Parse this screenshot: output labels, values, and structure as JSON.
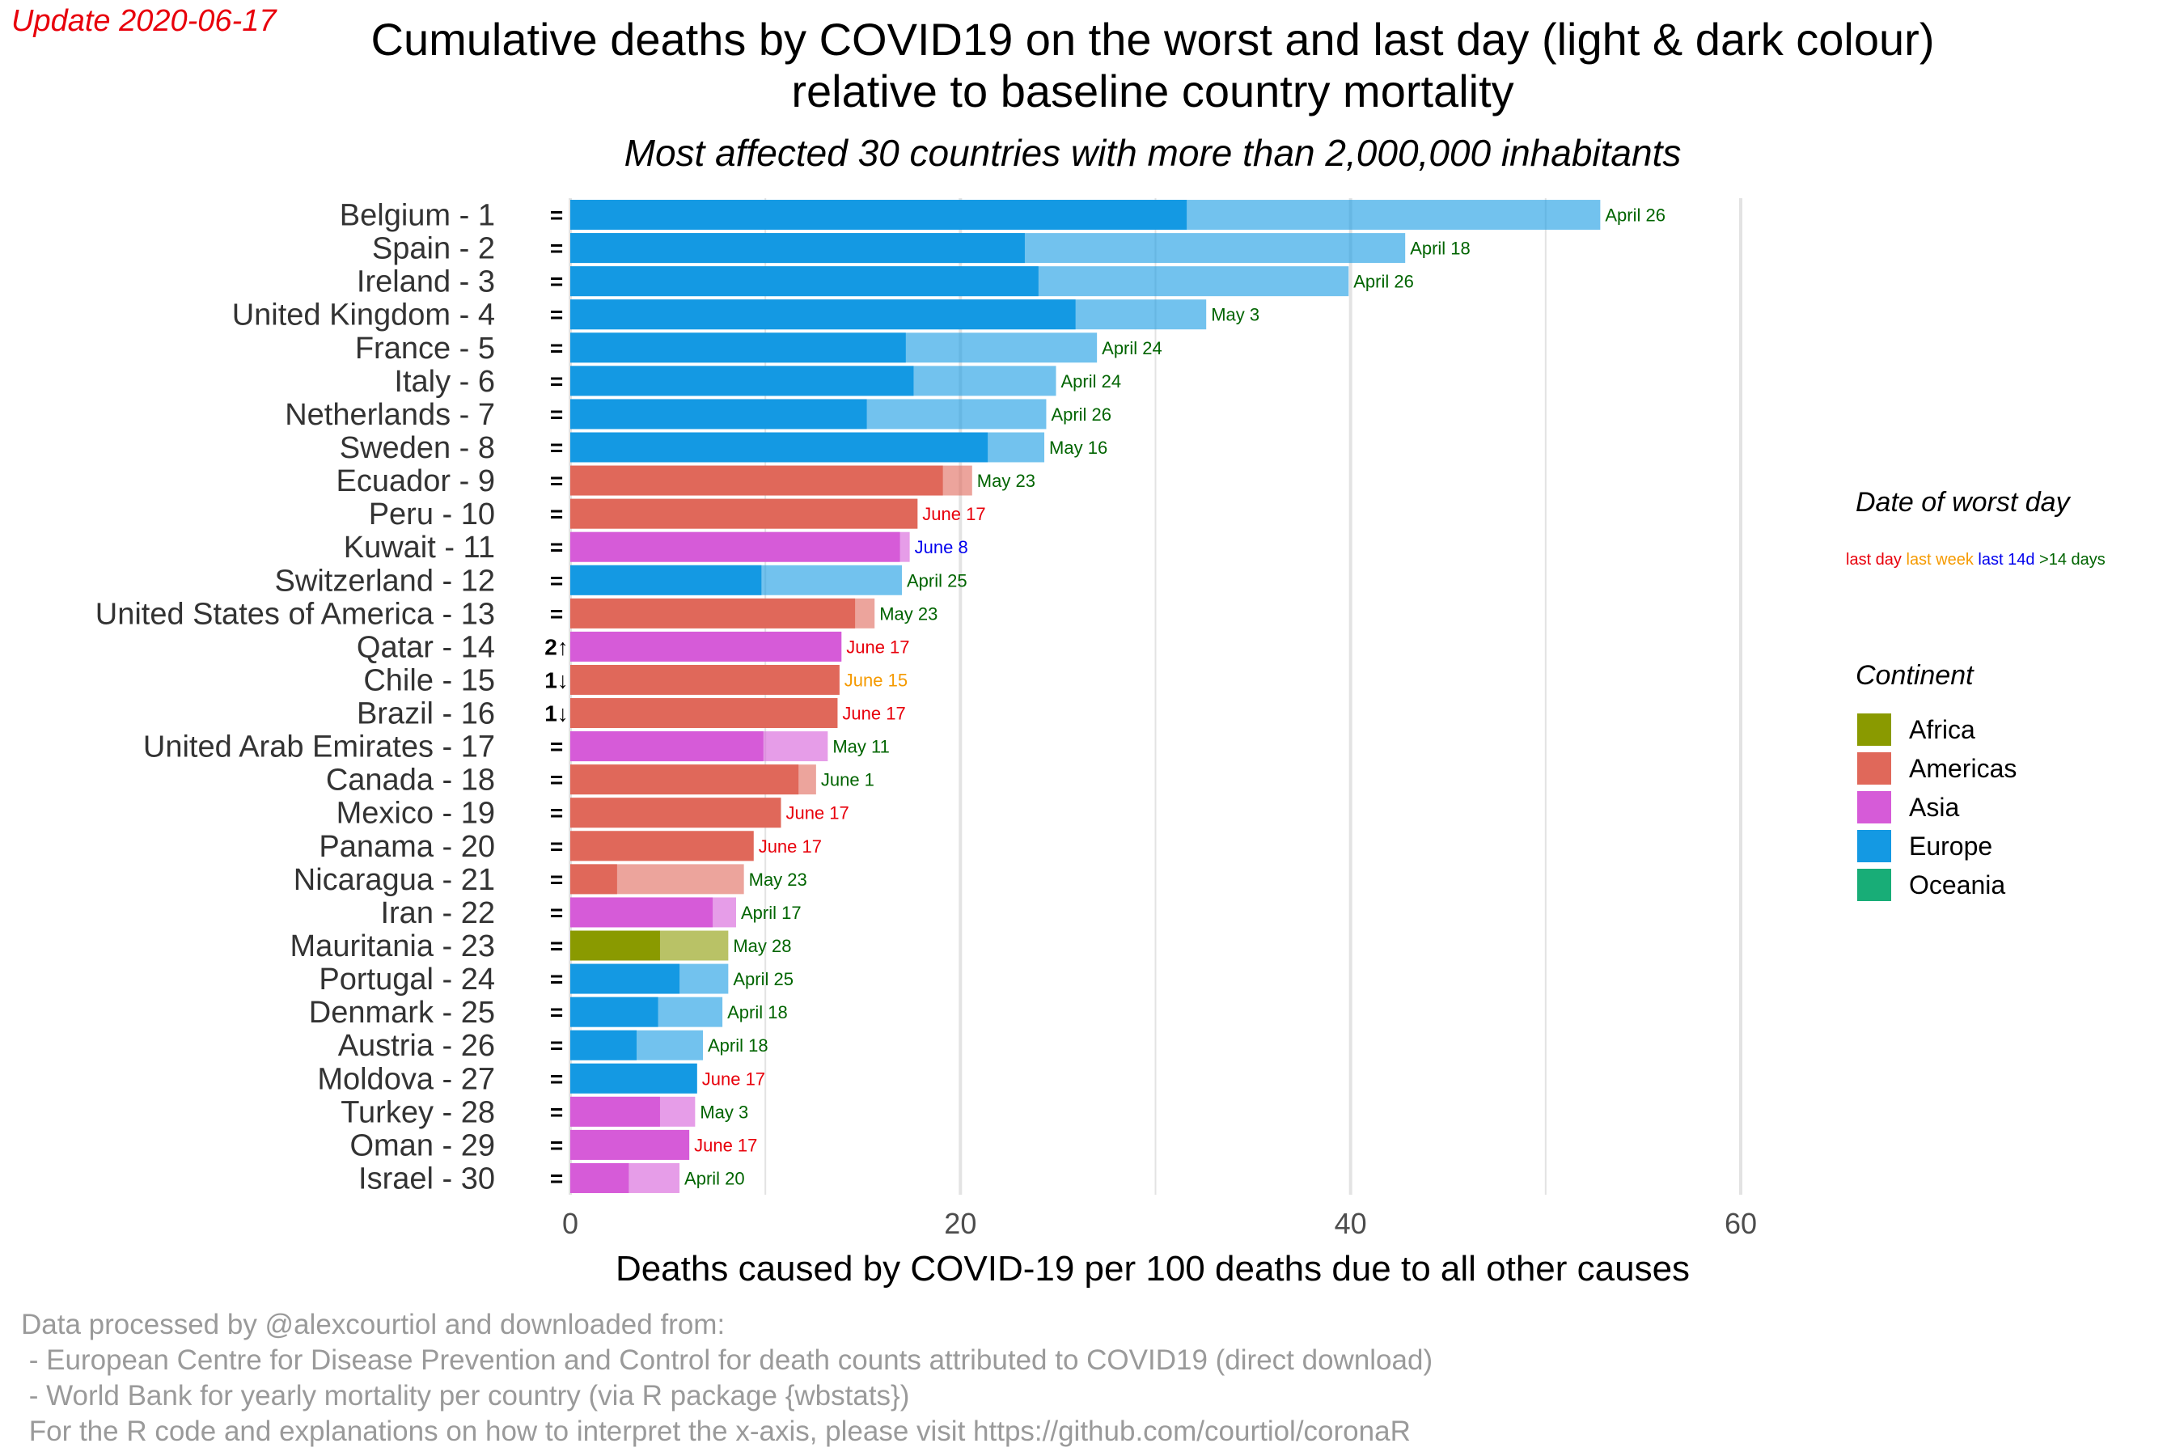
{
  "update_label": "Update 2020-06-17",
  "chart_data": {
    "type": "bar",
    "orientation": "horizontal",
    "title": "Cumulative deaths by COVID19 on the worst and last day (light & dark colour)",
    "title_line2": "relative to baseline country mortality",
    "subtitle": "Most affected 30 countries with more than 2,000,000 inhabitants",
    "xlabel": "Deaths caused by COVID-19 per 100 deaths due to all other causes",
    "xlim": [
      0,
      60
    ],
    "x_ticks": [
      "0",
      "20",
      "40",
      "60"
    ],
    "grid": true,
    "legend_position": "right",
    "continent_colors": {
      "Africa": "#8a9a00",
      "Americas": "#e0685a",
      "Asia": "#d65bd8",
      "Europe": "#1499e3",
      "Oceania": "#18ad77"
    },
    "date_category_colors": {
      "last day": "#e8000b",
      "last week": "#f59a00",
      "last 14d": "#0000ee",
      ">14 days": "#006400"
    },
    "countries": [
      {
        "label": "Belgium - 1",
        "rank_change": "=",
        "continent": "Europe",
        "last_day": 31.6,
        "worst_day": 52.8,
        "worst_date": "April 26",
        "date_category": ">14 days"
      },
      {
        "label": "Spain - 2",
        "rank_change": "=",
        "continent": "Europe",
        "last_day": 23.3,
        "worst_day": 42.8,
        "worst_date": "April 18",
        "date_category": ">14 days"
      },
      {
        "label": "Ireland - 3",
        "rank_change": "=",
        "continent": "Europe",
        "last_day": 24.0,
        "worst_day": 39.9,
        "worst_date": "April 26",
        "date_category": ">14 days"
      },
      {
        "label": "United Kingdom - 4",
        "rank_change": "=",
        "continent": "Europe",
        "last_day": 25.9,
        "worst_day": 32.6,
        "worst_date": "May 3",
        "date_category": ">14 days"
      },
      {
        "label": "France - 5",
        "rank_change": "=",
        "continent": "Europe",
        "last_day": 17.2,
        "worst_day": 27.0,
        "worst_date": "April 24",
        "date_category": ">14 days"
      },
      {
        "label": "Italy - 6",
        "rank_change": "=",
        "continent": "Europe",
        "last_day": 17.6,
        "worst_day": 24.9,
        "worst_date": "April 24",
        "date_category": ">14 days"
      },
      {
        "label": "Netherlands - 7",
        "rank_change": "=",
        "continent": "Europe",
        "last_day": 15.2,
        "worst_day": 24.4,
        "worst_date": "April 26",
        "date_category": ">14 days"
      },
      {
        "label": "Sweden - 8",
        "rank_change": "=",
        "continent": "Europe",
        "last_day": 21.4,
        "worst_day": 24.3,
        "worst_date": "May 16",
        "date_category": ">14 days"
      },
      {
        "label": "Ecuador - 9",
        "rank_change": "=",
        "continent": "Americas",
        "last_day": 19.1,
        "worst_day": 20.6,
        "worst_date": "May 23",
        "date_category": ">14 days"
      },
      {
        "label": "Peru - 10",
        "rank_change": "=",
        "continent": "Americas",
        "last_day": 17.8,
        "worst_day": 17.8,
        "worst_date": "June 17",
        "date_category": "last day"
      },
      {
        "label": "Kuwait - 11",
        "rank_change": "=",
        "continent": "Asia",
        "last_day": 16.9,
        "worst_day": 17.4,
        "worst_date": "June 8",
        "date_category": "last 14d"
      },
      {
        "label": "Switzerland - 12",
        "rank_change": "=",
        "continent": "Europe",
        "last_day": 9.8,
        "worst_day": 17.0,
        "worst_date": "April 25",
        "date_category": ">14 days"
      },
      {
        "label": "United States of America - 13",
        "rank_change": "=",
        "continent": "Americas",
        "last_day": 14.6,
        "worst_day": 15.6,
        "worst_date": "May 23",
        "date_category": ">14 days"
      },
      {
        "label": "Qatar - 14",
        "rank_change": "2↑",
        "continent": "Asia",
        "last_day": 13.9,
        "worst_day": 13.9,
        "worst_date": "June 17",
        "date_category": "last day"
      },
      {
        "label": "Chile - 15",
        "rank_change": "1↓",
        "continent": "Americas",
        "last_day": 13.8,
        "worst_day": 13.8,
        "worst_date": "June 15",
        "date_category": "last week"
      },
      {
        "label": "Brazil - 16",
        "rank_change": "1↓",
        "continent": "Americas",
        "last_day": 13.7,
        "worst_day": 13.7,
        "worst_date": "June 17",
        "date_category": "last day"
      },
      {
        "label": "United Arab Emirates - 17",
        "rank_change": "=",
        "continent": "Asia",
        "last_day": 9.9,
        "worst_day": 13.2,
        "worst_date": "May 11",
        "date_category": ">14 days"
      },
      {
        "label": "Canada - 18",
        "rank_change": "=",
        "continent": "Americas",
        "last_day": 11.7,
        "worst_day": 12.6,
        "worst_date": "June 1",
        "date_category": ">14 days"
      },
      {
        "label": "Mexico - 19",
        "rank_change": "=",
        "continent": "Americas",
        "last_day": 10.8,
        "worst_day": 10.8,
        "worst_date": "June 17",
        "date_category": "last day"
      },
      {
        "label": "Panama - 20",
        "rank_change": "=",
        "continent": "Americas",
        "last_day": 9.4,
        "worst_day": 9.4,
        "worst_date": "June 17",
        "date_category": "last day"
      },
      {
        "label": "Nicaragua - 21",
        "rank_change": "=",
        "continent": "Americas",
        "last_day": 2.4,
        "worst_day": 8.9,
        "worst_date": "May 23",
        "date_category": ">14 days"
      },
      {
        "label": "Iran - 22",
        "rank_change": "=",
        "continent": "Asia",
        "last_day": 7.3,
        "worst_day": 8.5,
        "worst_date": "April 17",
        "date_category": ">14 days"
      },
      {
        "label": "Mauritania - 23",
        "rank_change": "=",
        "continent": "Africa",
        "last_day": 4.6,
        "worst_day": 8.1,
        "worst_date": "May 28",
        "date_category": ">14 days"
      },
      {
        "label": "Portugal - 24",
        "rank_change": "=",
        "continent": "Europe",
        "last_day": 5.6,
        "worst_day": 8.1,
        "worst_date": "April 25",
        "date_category": ">14 days"
      },
      {
        "label": "Denmark - 25",
        "rank_change": "=",
        "continent": "Europe",
        "last_day": 4.5,
        "worst_day": 7.8,
        "worst_date": "April 18",
        "date_category": ">14 days"
      },
      {
        "label": "Austria - 26",
        "rank_change": "=",
        "continent": "Europe",
        "last_day": 3.4,
        "worst_day": 6.8,
        "worst_date": "April 18",
        "date_category": ">14 days"
      },
      {
        "label": "Moldova - 27",
        "rank_change": "=",
        "continent": "Europe",
        "last_day": 6.5,
        "worst_day": 6.5,
        "worst_date": "June 17",
        "date_category": "last day"
      },
      {
        "label": "Turkey - 28",
        "rank_change": "=",
        "continent": "Asia",
        "last_day": 4.6,
        "worst_day": 6.4,
        "worst_date": "May 3",
        "date_category": ">14 days"
      },
      {
        "label": "Oman - 29",
        "rank_change": "=",
        "continent": "Asia",
        "last_day": 6.1,
        "worst_day": 6.1,
        "worst_date": "June 17",
        "date_category": "last day"
      },
      {
        "label": "Israel - 30",
        "rank_change": "=",
        "continent": "Asia",
        "last_day": 3.0,
        "worst_day": 5.6,
        "worst_date": "April 20",
        "date_category": ">14 days"
      }
    ]
  },
  "legend": {
    "date_title": "Date of worst day",
    "date_items": [
      {
        "label": "last day",
        "color": "#e8000b"
      },
      {
        "label": "last week",
        "color": "#f59a00"
      },
      {
        "label": "last 14d",
        "color": "#0000ee"
      },
      {
        "label": ">14 days",
        "color": "#006400"
      }
    ],
    "continent_title": "Continent",
    "continent_items": [
      "Africa",
      "Americas",
      "Asia",
      "Europe",
      "Oceania"
    ]
  },
  "caption": [
    "Data processed by @alexcourtiol and downloaded from:",
    " - European Centre for Disease Prevention and Control for death counts attributed to COVID19 (direct download)",
    " - World Bank for yearly mortality per country (via R package {wbstats})",
    " For the R code and explanations on how to interpret the x-axis, please visit https://github.com/courtiol/coronaR"
  ]
}
